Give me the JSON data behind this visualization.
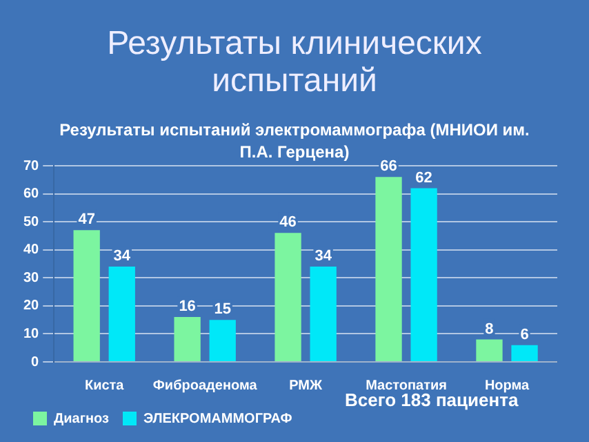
{
  "chart_data": {
    "type": "bar",
    "title": "Результаты клинических испытаний",
    "subtitle": "Результаты испытаний электромаммографа (МНИОИ им. П.А. Герцена)",
    "categories": [
      "Киста",
      "Фиброаденома",
      "РМЖ",
      "Мастопатия",
      "Норма"
    ],
    "series": [
      {
        "name": "Диагноз",
        "color": "#7cf5a0",
        "values": [
          47,
          16,
          46,
          66,
          8
        ]
      },
      {
        "name": "ЭЛЕКРОМАММОГРАФ",
        "color": "#00e8f8",
        "values": [
          34,
          15,
          34,
          62,
          6
        ]
      }
    ],
    "ylim": [
      0,
      70
    ],
    "yticks": [
      0,
      10,
      20,
      30,
      40,
      50,
      60,
      70
    ],
    "grid": "y",
    "legend": "bottom left",
    "data_labels": true,
    "annotations": [
      "Всего 183 пациента"
    ]
  }
}
